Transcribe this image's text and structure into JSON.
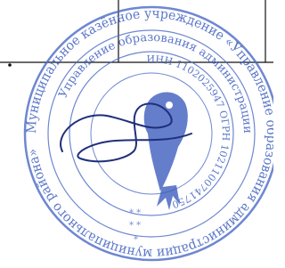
{
  "stamp": {
    "outer_text": "Муниципальное казённое учреждение «Управление образования администрации муниципального района»",
    "middle_text": "Управление образования администрации",
    "inner_text": "ИНН 1102025947 ОГРН 1021100741750"
  }
}
